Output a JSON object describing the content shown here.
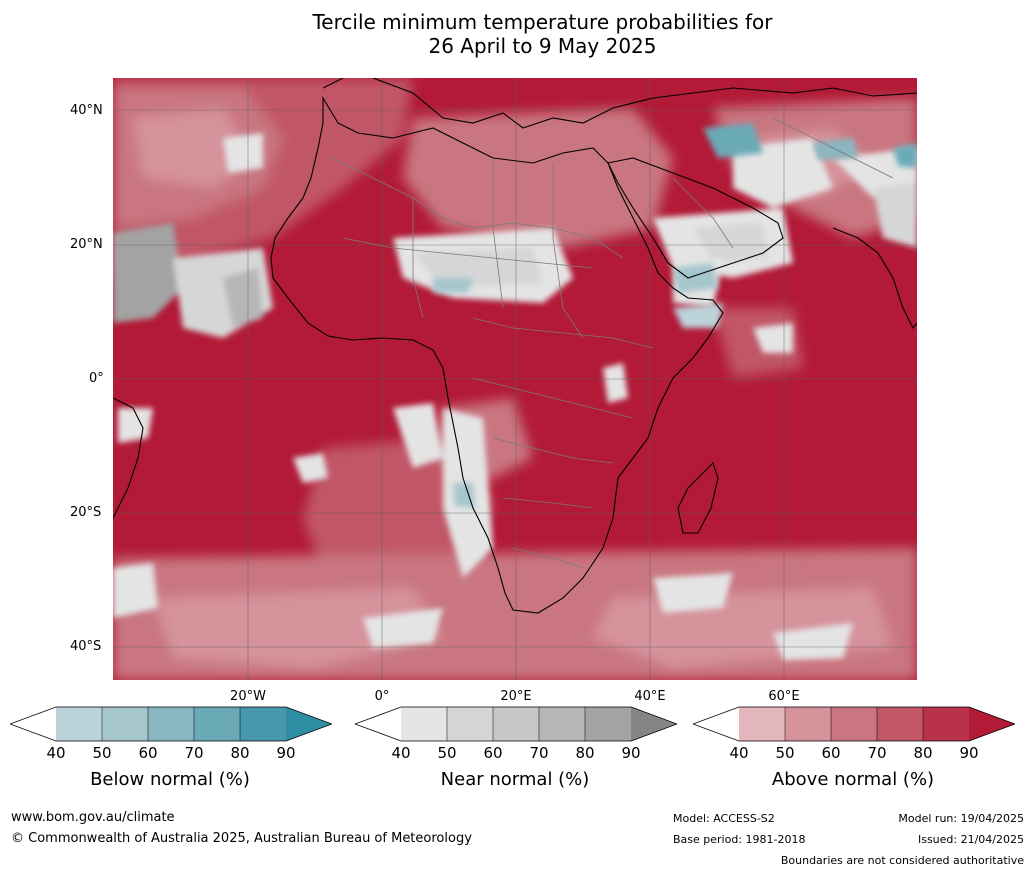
{
  "title_line1": "Tercile minimum temperature probabilities for",
  "title_line2": "26 April to 9 May 2025",
  "lat_labels": [
    "40°N",
    "20°N",
    "0°",
    "20°S",
    "40°S"
  ],
  "lon_labels": [
    "20°W",
    "0°",
    "20°E",
    "40°E",
    "60°E"
  ],
  "legend": {
    "below": {
      "title": "Below normal (%)",
      "ticks": [
        "40",
        "50",
        "60",
        "70",
        "80",
        "90"
      ],
      "colors": [
        "#ffffff",
        "#bcd3da",
        "#a6c6cd",
        "#89b6c1",
        "#6aaab7",
        "#4798ab",
        "#2f8ea3"
      ]
    },
    "near": {
      "title": "Near normal (%)",
      "ticks": [
        "40",
        "50",
        "60",
        "70",
        "80",
        "90"
      ],
      "colors": [
        "#ffffff",
        "#e4e4e4",
        "#d6d6d6",
        "#c6c6c6",
        "#b6b6b6",
        "#a3a3a3",
        "#858585"
      ]
    },
    "above": {
      "title": "Above normal (%)",
      "ticks": [
        "40",
        "50",
        "60",
        "70",
        "80",
        "90"
      ],
      "colors": [
        "#ffffff",
        "#e3b7bd",
        "#d5939c",
        "#c97680",
        "#c15766",
        "#b8334a",
        "#b21a37"
      ]
    }
  },
  "footer": {
    "website": "www.bom.gov.au/climate",
    "copyright": "© Commonwealth of Australia 2025, Australian Bureau of Meteorology",
    "model": "Model: ACCESS-S2",
    "base_period": "Base period: 1981-2018",
    "model_run": "Model run: 19/04/2025",
    "issued": "Issued: 21/04/2025",
    "disclaimer": "Boundaries are not considered authoritative"
  }
}
